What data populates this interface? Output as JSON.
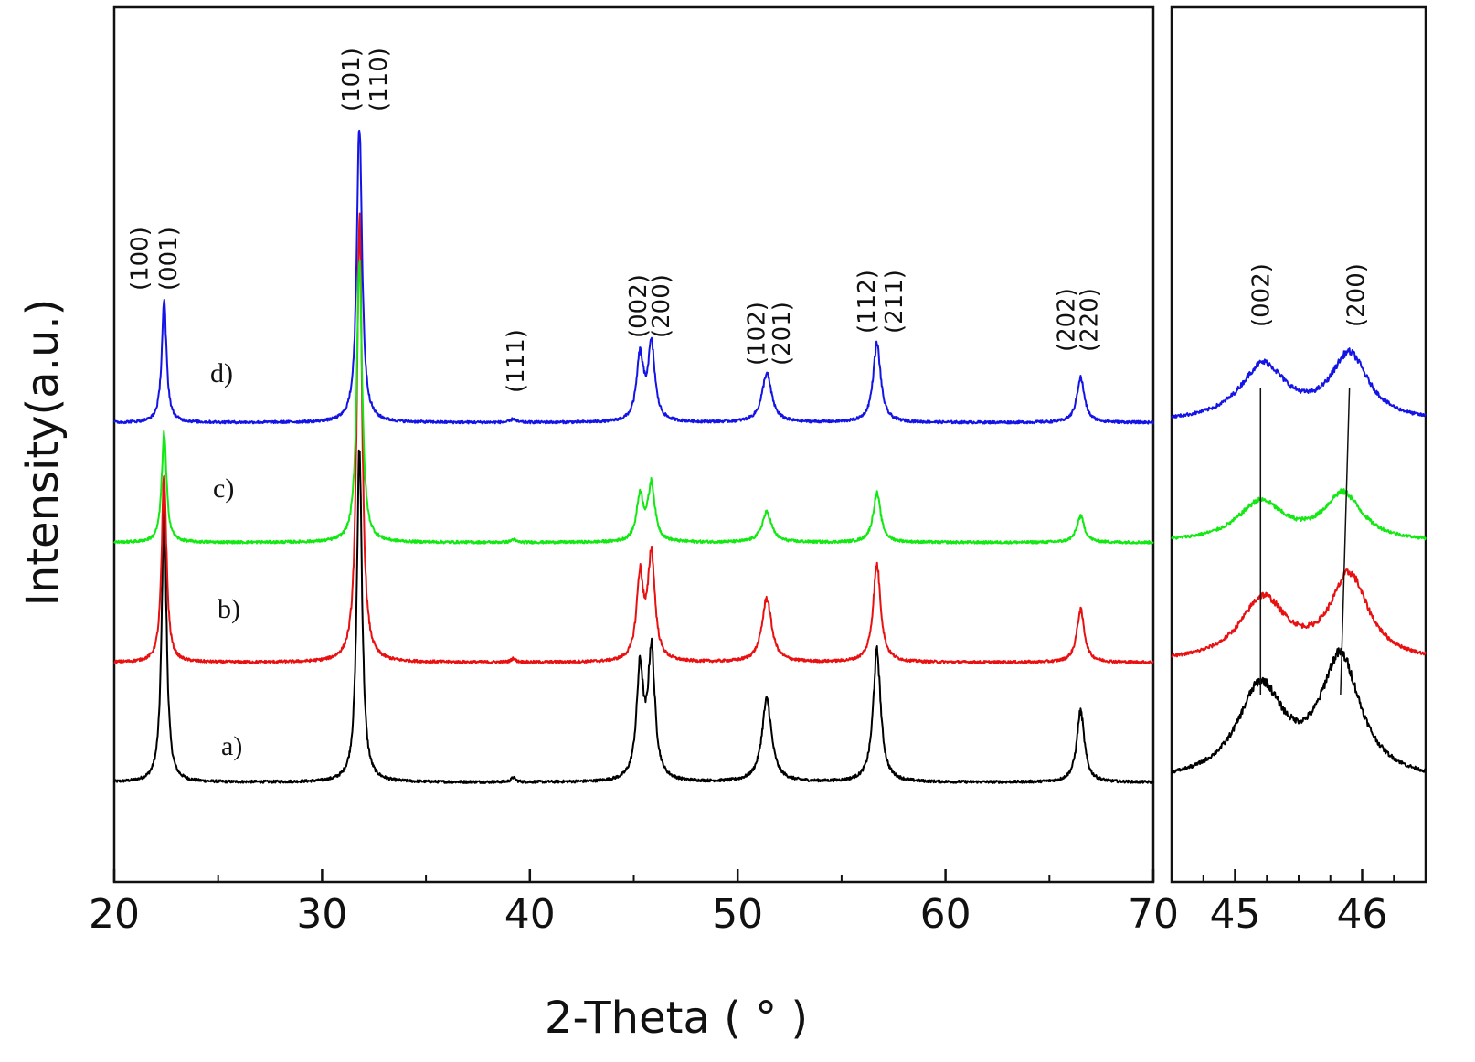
{
  "chart_data": [
    {
      "type": "line",
      "panel": "main",
      "xlabel": "2-Theta ( ° )",
      "ylabel": "Intensity(a.u.)",
      "xlim": [
        20,
        70
      ],
      "x_ticks": [
        20,
        30,
        40,
        50,
        60,
        70
      ],
      "y_ticks_shown": false,
      "grid": false,
      "series": [
        {
          "label": "a)",
          "color": "#000000",
          "baseline": 0.0,
          "peaks": [
            [
              22.4,
              7.4,
              0.14
            ],
            [
              31.8,
              8.9,
              0.15
            ],
            [
              39.2,
              0.12,
              0.12
            ],
            [
              45.3,
              2.9,
              0.2
            ],
            [
              45.85,
              3.4,
              0.2
            ],
            [
              51.4,
              2.2,
              0.28
            ],
            [
              56.7,
              3.5,
              0.22
            ],
            [
              66.5,
              1.9,
              0.22
            ]
          ]
        },
        {
          "label": "b)",
          "color": "#e81010",
          "baseline": 3.2,
          "peaks": [
            [
              22.4,
              5.0,
              0.14
            ],
            [
              31.8,
              11.8,
              0.15
            ],
            [
              39.2,
              0.1,
              0.12
            ],
            [
              45.3,
              2.2,
              0.2
            ],
            [
              45.85,
              2.8,
              0.2
            ],
            [
              51.4,
              1.7,
              0.28
            ],
            [
              56.7,
              2.6,
              0.22
            ],
            [
              66.5,
              1.4,
              0.22
            ]
          ]
        },
        {
          "label": "c)",
          "color": "#12e812",
          "baseline": 6.4,
          "peaks": [
            [
              22.4,
              2.9,
              0.14
            ],
            [
              31.8,
              7.6,
              0.15
            ],
            [
              39.2,
              0.08,
              0.12
            ],
            [
              45.3,
              1.2,
              0.2
            ],
            [
              45.85,
              1.5,
              0.2
            ],
            [
              51.4,
              0.8,
              0.28
            ],
            [
              56.7,
              1.3,
              0.22
            ],
            [
              66.5,
              0.7,
              0.22
            ]
          ]
        },
        {
          "label": "d)",
          "color": "#1414e6",
          "baseline": 9.6,
          "peaks": [
            [
              22.4,
              3.2,
              0.14
            ],
            [
              31.8,
              8.0,
              0.15
            ],
            [
              39.2,
              0.1,
              0.12
            ],
            [
              45.3,
              1.7,
              0.2
            ],
            [
              45.85,
              2.0,
              0.2
            ],
            [
              51.4,
              1.3,
              0.28
            ],
            [
              56.7,
              2.1,
              0.22
            ],
            [
              66.5,
              1.2,
              0.22
            ]
          ]
        }
      ],
      "annotations": [
        {
          "text": "(100)",
          "x": 21.2
        },
        {
          "text": "(001)",
          "x": 22.6
        },
        {
          "text": "(101)",
          "x": 31.4
        },
        {
          "text": "(110)",
          "x": 32.7
        },
        {
          "text": "(111)",
          "x": 39.3
        },
        {
          "text": "(002)",
          "x": 45.2
        },
        {
          "text": "(200)",
          "x": 46.3
        },
        {
          "text": "(102)",
          "x": 50.9
        },
        {
          "text": "(201)",
          "x": 52.1
        },
        {
          "text": "(112)",
          "x": 56.2
        },
        {
          "text": "(211)",
          "x": 57.5
        },
        {
          "text": "(202)",
          "x": 65.8
        },
        {
          "text": "(220)",
          "x": 66.9
        }
      ]
    },
    {
      "type": "line",
      "panel": "zoom",
      "xlim": [
        44.5,
        46.5
      ],
      "x_ticks": [
        45,
        46
      ],
      "x_minor_ticks": [
        44.75,
        45.25,
        45.5,
        45.75,
        46.25
      ],
      "y_ticks_shown": false,
      "grid": false,
      "series": [
        {
          "label": "a)",
          "color": "#000000",
          "baseline": 0.0,
          "peaks": [
            [
              45.2,
              2.45,
              0.22
            ],
            [
              45.83,
              3.2,
              0.19
            ]
          ]
        },
        {
          "label": "b)",
          "color": "#e81010",
          "baseline": 3.2,
          "peaks": [
            [
              45.22,
              1.65,
              0.22
            ],
            [
              45.9,
              2.25,
              0.18
            ]
          ]
        },
        {
          "label": "c)",
          "color": "#12e812",
          "baseline": 6.4,
          "peaks": [
            [
              45.2,
              1.05,
              0.22
            ],
            [
              45.85,
              1.25,
              0.18
            ]
          ]
        },
        {
          "label": "d)",
          "color": "#1414e6",
          "baseline": 9.6,
          "peaks": [
            [
              45.22,
              1.5,
              0.22
            ],
            [
              45.9,
              1.75,
              0.18
            ]
          ]
        }
      ],
      "annotations": [
        {
          "text": "(002)",
          "x": 45.2
        },
        {
          "text": "(200)",
          "x": 45.95
        }
      ],
      "guide_lines": [
        {
          "x_top": 45.2,
          "x_bottom": 45.2
        },
        {
          "x_top": 45.9,
          "x_bottom": 45.83
        }
      ]
    }
  ]
}
